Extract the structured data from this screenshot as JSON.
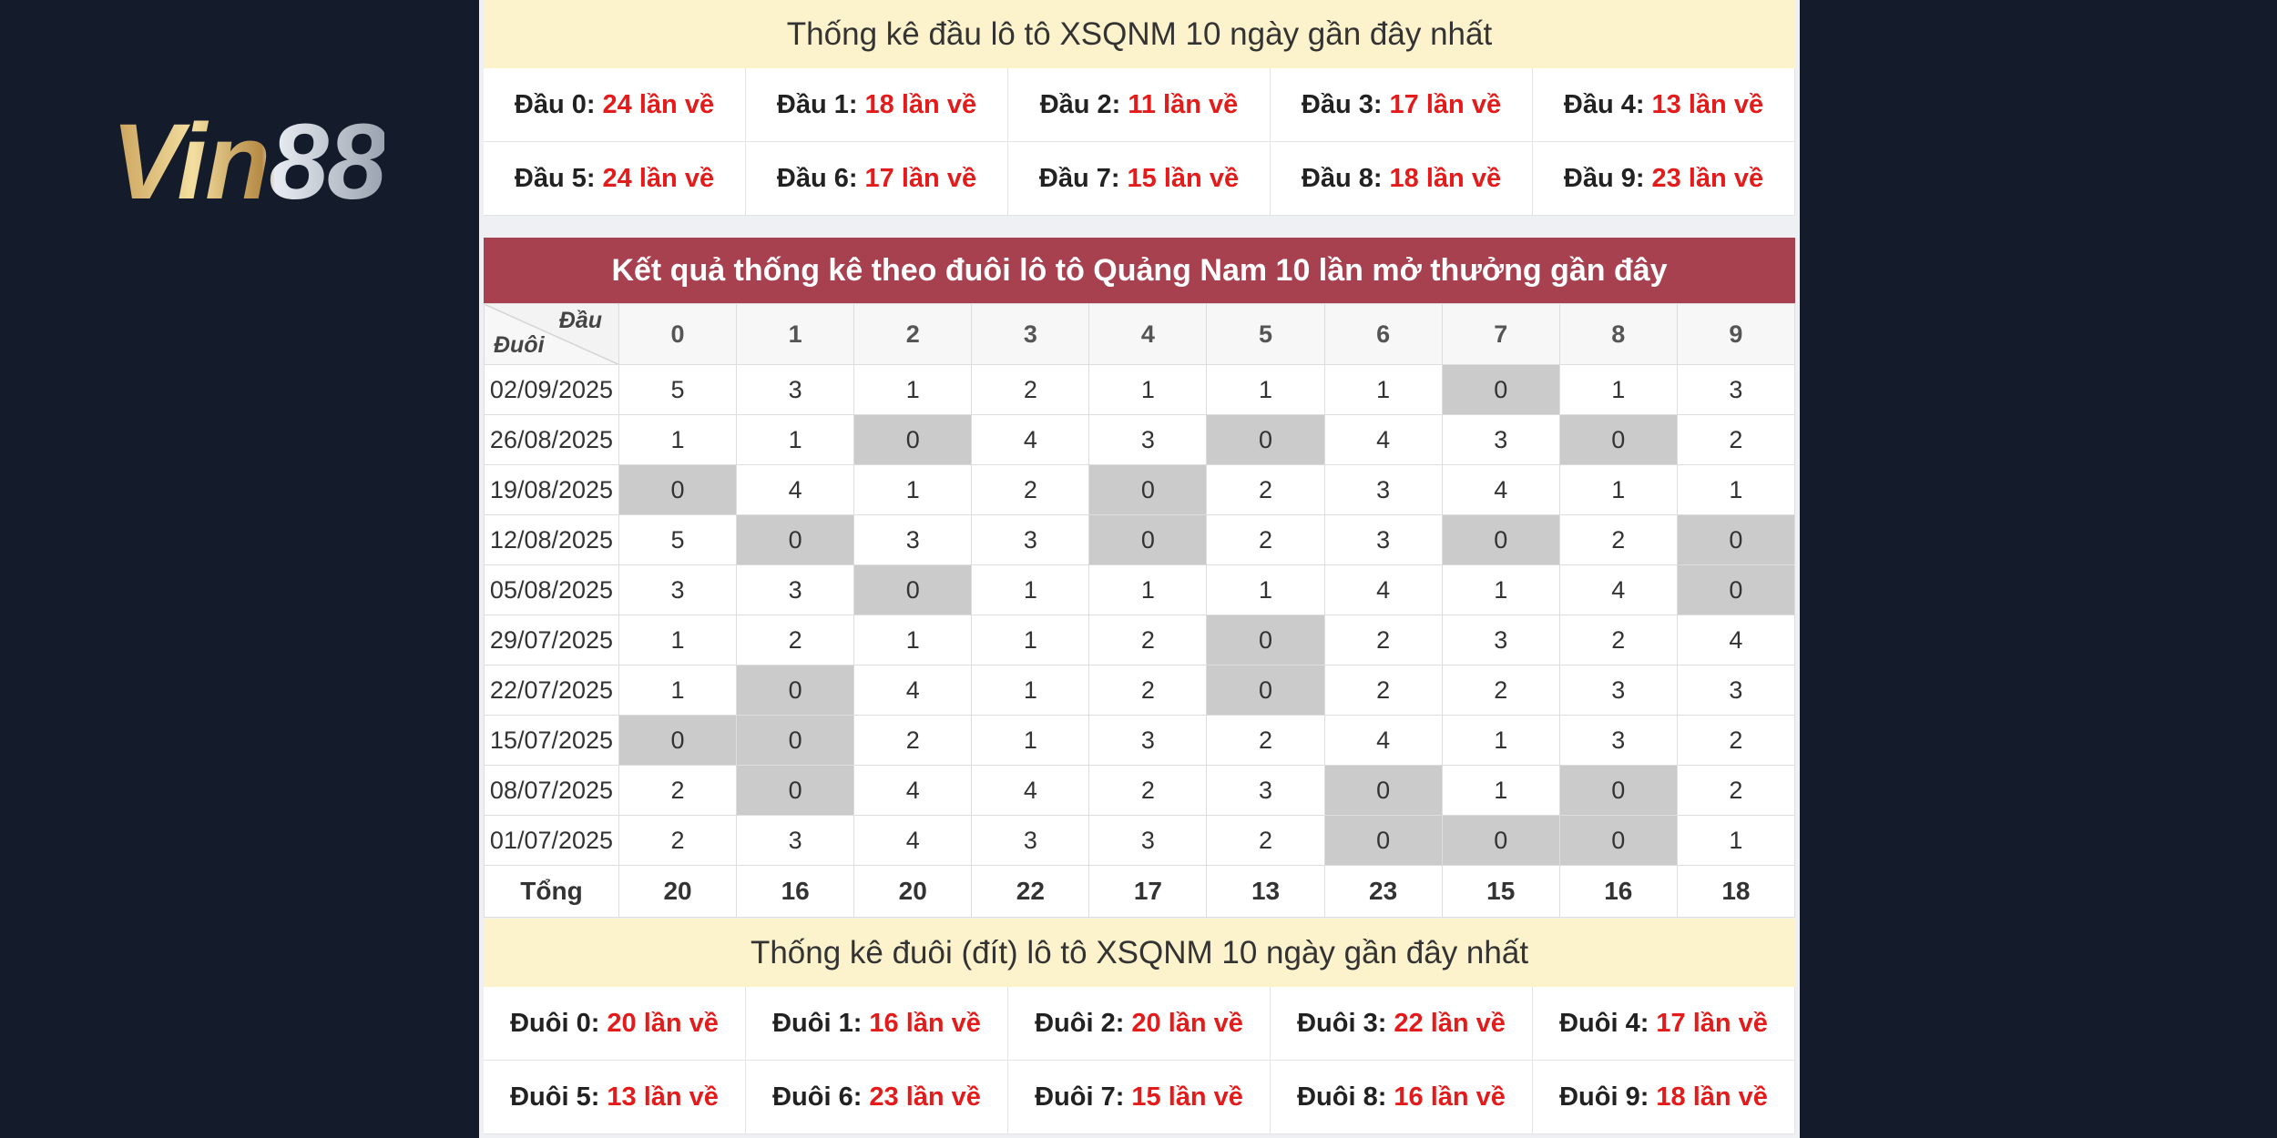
{
  "logo": "Vin88",
  "head_stats": {
    "title": "Thống kê đầu lô tô XSQNM 10 ngày gần đây nhất",
    "items": [
      {
        "label": "Đầu 0:",
        "value": "24 lần về"
      },
      {
        "label": "Đầu 1:",
        "value": "18 lần về"
      },
      {
        "label": "Đầu 2:",
        "value": "11 lần về"
      },
      {
        "label": "Đầu 3:",
        "value": "17 lần về"
      },
      {
        "label": "Đầu 4:",
        "value": "13 lần về"
      },
      {
        "label": "Đầu 5:",
        "value": "24 lần về"
      },
      {
        "label": "Đầu 6:",
        "value": "17 lần về"
      },
      {
        "label": "Đầu 7:",
        "value": "15 lần về"
      },
      {
        "label": "Đầu 8:",
        "value": "18 lần về"
      },
      {
        "label": "Đầu 9:",
        "value": "23 lần về"
      }
    ]
  },
  "table": {
    "title": "Kết quả thống kê theo đuôi lô tô Quảng Nam 10 lần mở thưởng gần đây",
    "corner_top": "Đầu",
    "corner_bottom": "Đuôi",
    "columns": [
      0,
      1,
      2,
      3,
      4,
      5,
      6,
      7,
      8,
      9
    ],
    "rows": [
      [
        "02/09/2025",
        5,
        3,
        1,
        2,
        1,
        1,
        1,
        0,
        1,
        3
      ],
      [
        "26/08/2025",
        1,
        1,
        0,
        4,
        3,
        0,
        4,
        3,
        0,
        2
      ],
      [
        "19/08/2025",
        0,
        4,
        1,
        2,
        0,
        2,
        3,
        4,
        1,
        1
      ],
      [
        "12/08/2025",
        5,
        0,
        3,
        3,
        0,
        2,
        3,
        0,
        2,
        0
      ],
      [
        "05/08/2025",
        3,
        3,
        0,
        1,
        1,
        1,
        4,
        1,
        4,
        0
      ],
      [
        "29/07/2025",
        1,
        2,
        1,
        1,
        2,
        0,
        2,
        3,
        2,
        4
      ],
      [
        "22/07/2025",
        1,
        0,
        4,
        1,
        2,
        0,
        2,
        2,
        3,
        3
      ],
      [
        "15/07/2025",
        0,
        0,
        2,
        1,
        3,
        2,
        4,
        1,
        3,
        2
      ],
      [
        "08/07/2025",
        2,
        0,
        4,
        4,
        2,
        3,
        0,
        1,
        0,
        2
      ],
      [
        "01/07/2025",
        2,
        3,
        4,
        3,
        3,
        2,
        0,
        0,
        0,
        1
      ]
    ],
    "total_label": "Tổng",
    "totals": [
      20,
      16,
      20,
      22,
      17,
      13,
      23,
      15,
      16,
      18
    ]
  },
  "tail_stats": {
    "title": "Thống kê đuôi (đít) lô tô XSQNM 10 ngày gần đây nhất",
    "items": [
      {
        "label": "Đuôi 0:",
        "value": "20 lần về"
      },
      {
        "label": "Đuôi 1:",
        "value": "16 lần về"
      },
      {
        "label": "Đuôi 2:",
        "value": "20 lần về"
      },
      {
        "label": "Đuôi 3:",
        "value": "22 lần về"
      },
      {
        "label": "Đuôi 4:",
        "value": "17 lần về"
      },
      {
        "label": "Đuôi 5:",
        "value": "13 lần về"
      },
      {
        "label": "Đuôi 6:",
        "value": "23 lần về"
      },
      {
        "label": "Đuôi 7:",
        "value": "15 lần về"
      },
      {
        "label": "Đuôi 8:",
        "value": "16 lần về"
      },
      {
        "label": "Đuôi 9:",
        "value": "18 lần về"
      }
    ]
  }
}
